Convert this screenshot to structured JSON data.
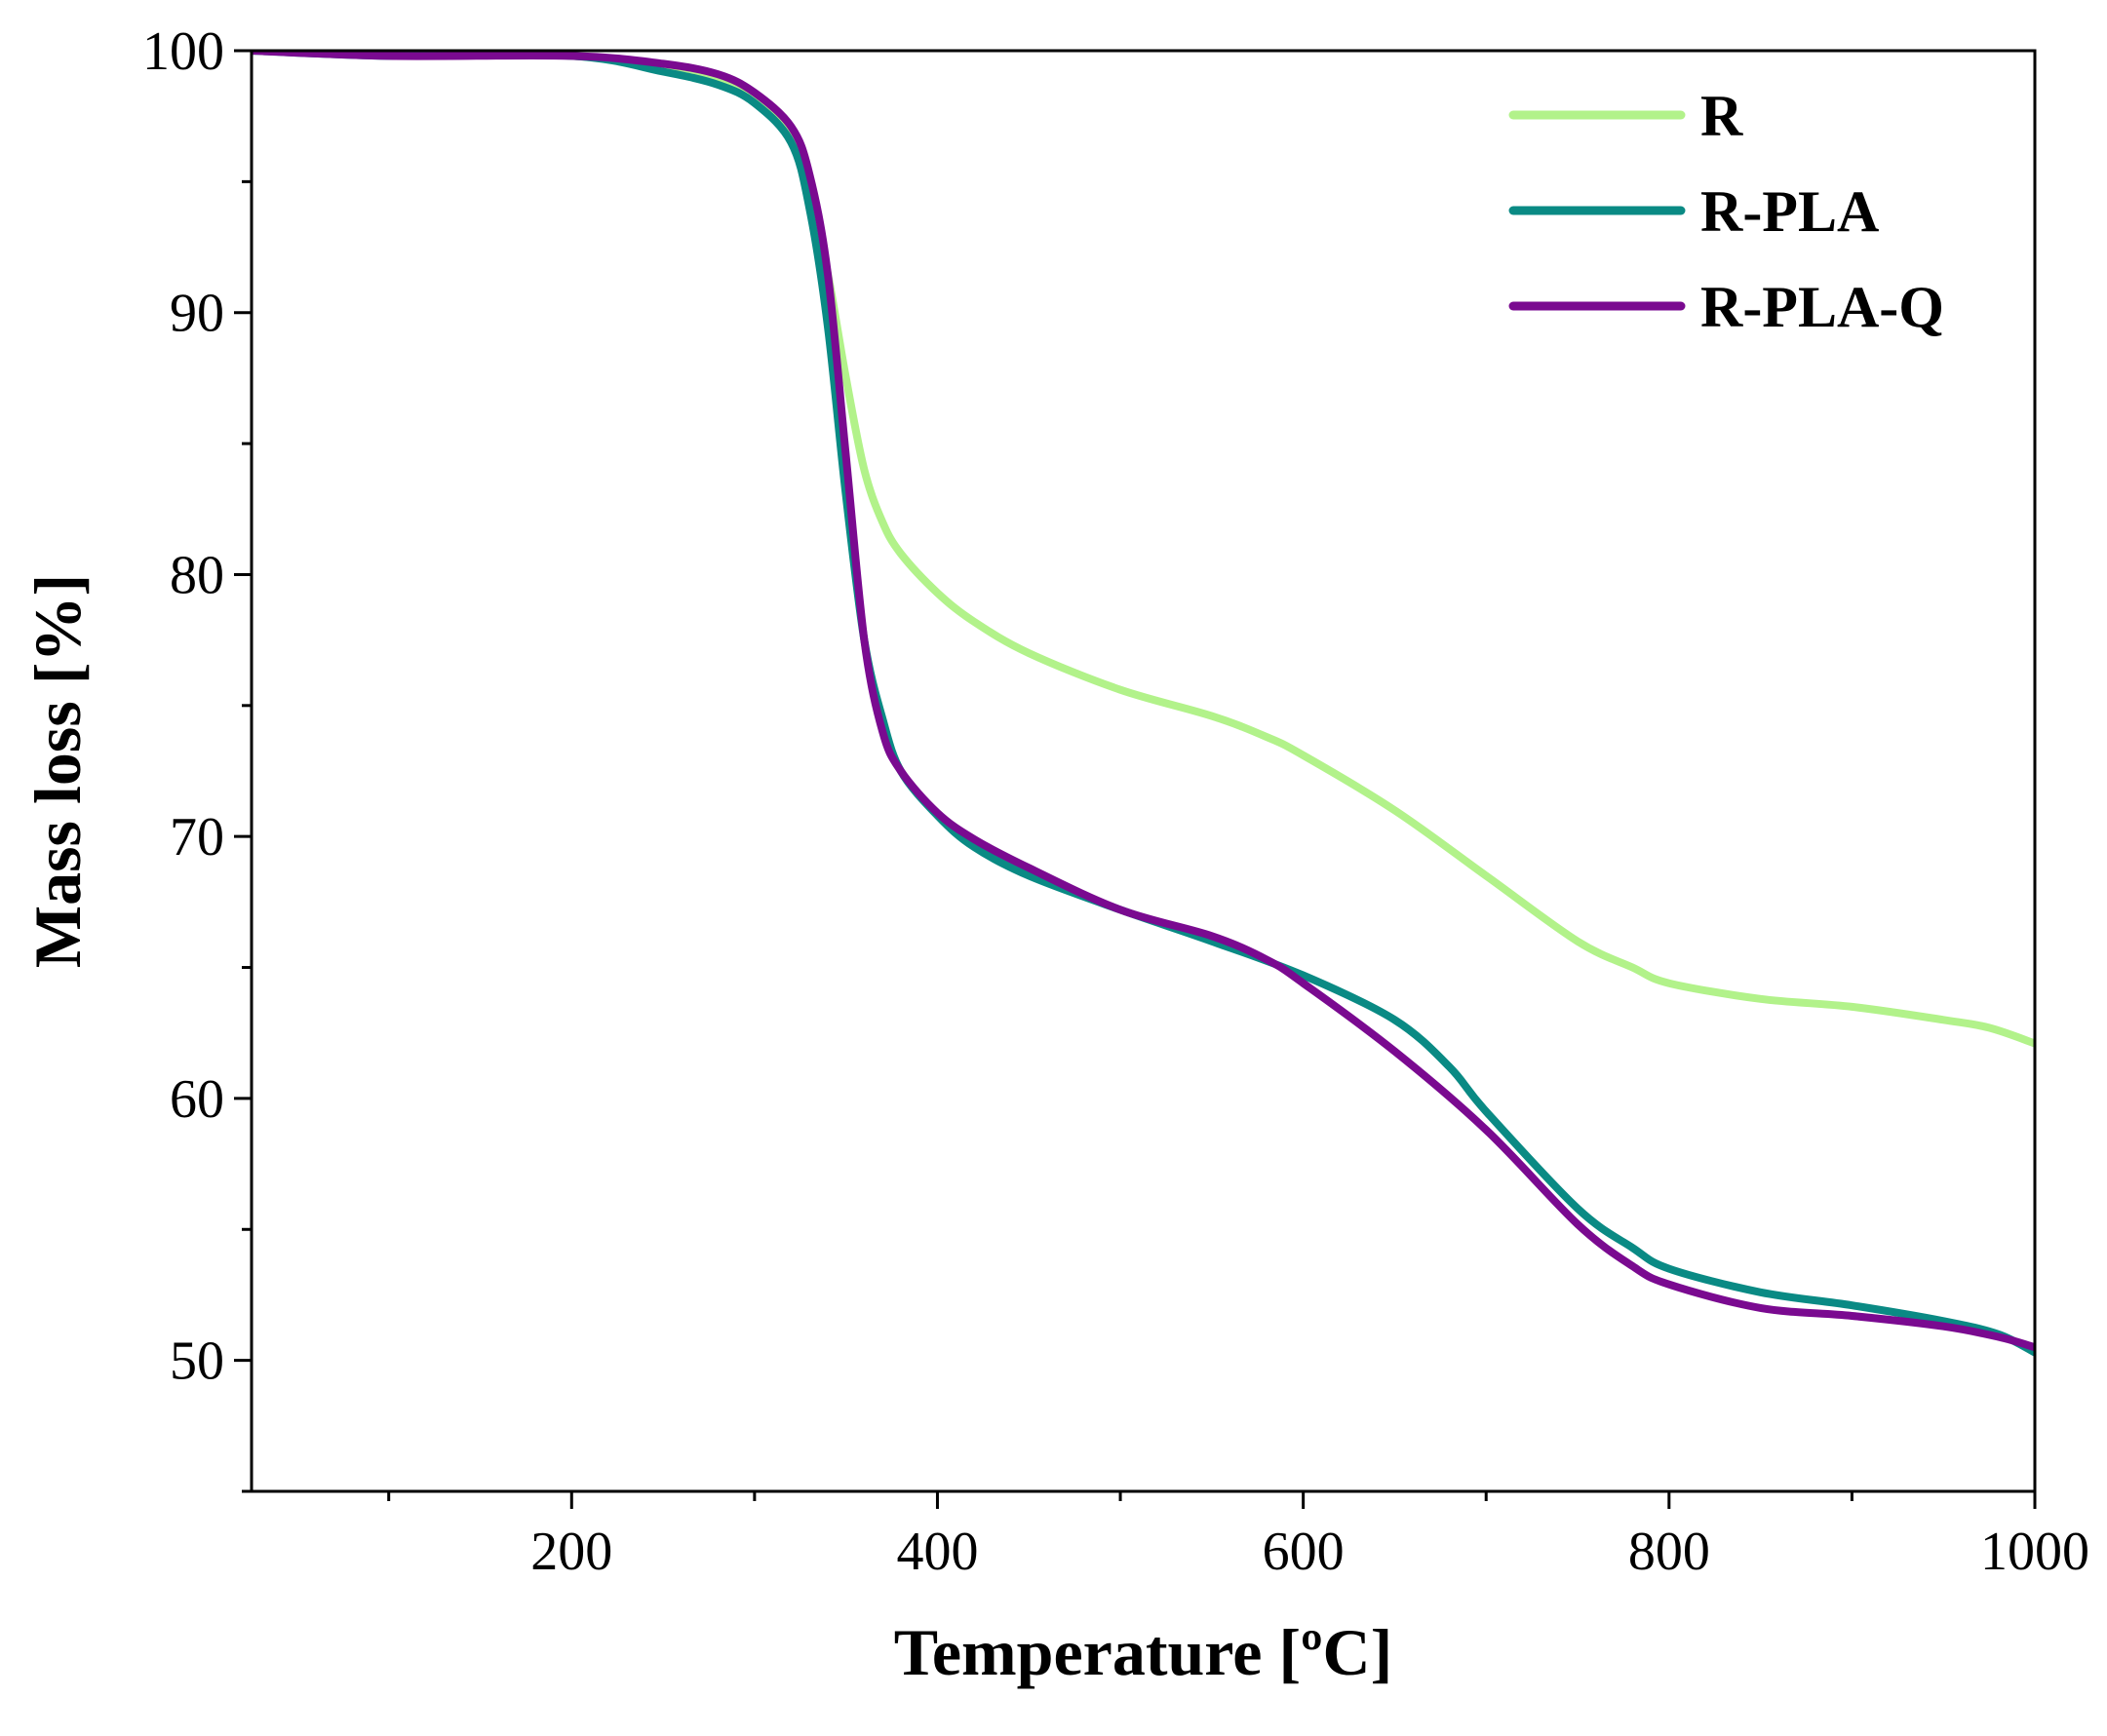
{
  "chart_data": {
    "type": "line",
    "title": "",
    "xlabel": "Temperature [ºC]",
    "ylabel": "Mass loss [%]",
    "xlim": [
      25,
      1000
    ],
    "ylim": [
      45,
      100
    ],
    "x_ticks": [
      200,
      400,
      600,
      800,
      1000
    ],
    "x_minor_ticks": [
      100,
      300,
      500,
      700,
      900
    ],
    "y_ticks": [
      50,
      60,
      70,
      80,
      90,
      100
    ],
    "y_minor_ticks": [
      45,
      55,
      65,
      75,
      85,
      95
    ],
    "x_tick_labels": [
      "200",
      "400",
      "600",
      "800",
      "1000"
    ],
    "y_tick_labels": [
      "50",
      "60",
      "70",
      "80",
      "90",
      "100"
    ],
    "grid": false,
    "legend_position": "top-right",
    "series": [
      {
        "name": "R",
        "color": "#b2f28a",
        "x": [
          25,
          100,
          200,
          250,
          280,
          300,
          320,
          330,
          340,
          350,
          360,
          370,
          380,
          400,
          420,
          450,
          500,
          550,
          580,
          600,
          650,
          700,
          750,
          780,
          800,
          850,
          900,
          950,
          975,
          1000
        ],
        "y": [
          100,
          99.9,
          99.8,
          99.3,
          98.8,
          98.2,
          96.6,
          94.5,
          91.5,
          87.5,
          84.0,
          82.0,
          80.8,
          79.3,
          78.2,
          77.0,
          75.6,
          74.6,
          73.8,
          73.1,
          71.0,
          68.5,
          66.0,
          65.0,
          64.4,
          63.8,
          63.5,
          63.0,
          62.7,
          62.1
        ]
      },
      {
        "name": "R-PLA",
        "color": "#0a8a84",
        "x": [
          25,
          100,
          200,
          250,
          280,
          300,
          320,
          330,
          340,
          350,
          360,
          370,
          380,
          400,
          420,
          450,
          500,
          550,
          600,
          650,
          680,
          700,
          750,
          780,
          800,
          850,
          900,
          950,
          980,
          1000
        ],
        "y": [
          100,
          99.8,
          99.8,
          99.2,
          98.7,
          98.0,
          96.5,
          94.0,
          89.5,
          83.0,
          77.5,
          74.5,
          72.5,
          70.8,
          69.6,
          68.5,
          67.2,
          66.0,
          64.7,
          63.0,
          61.2,
          59.5,
          55.8,
          54.3,
          53.5,
          52.6,
          52.1,
          51.5,
          51.0,
          50.3
        ]
      },
      {
        "name": "R-PLA-Q",
        "color": "#7a0a90",
        "x": [
          25,
          100,
          200,
          250,
          280,
          300,
          320,
          330,
          340,
          350,
          360,
          370,
          380,
          400,
          420,
          450,
          500,
          550,
          580,
          600,
          650,
          700,
          750,
          780,
          800,
          850,
          900,
          950,
          980,
          1000
        ],
        "y": [
          100,
          99.8,
          99.8,
          99.5,
          99.1,
          98.4,
          97.1,
          95.3,
          91.5,
          84.5,
          77.5,
          74.0,
          72.5,
          70.9,
          69.9,
          68.8,
          67.2,
          66.2,
          65.3,
          64.4,
          61.8,
          58.8,
          55.2,
          53.6,
          52.9,
          52.0,
          51.7,
          51.3,
          50.9,
          50.5
        ]
      }
    ]
  }
}
